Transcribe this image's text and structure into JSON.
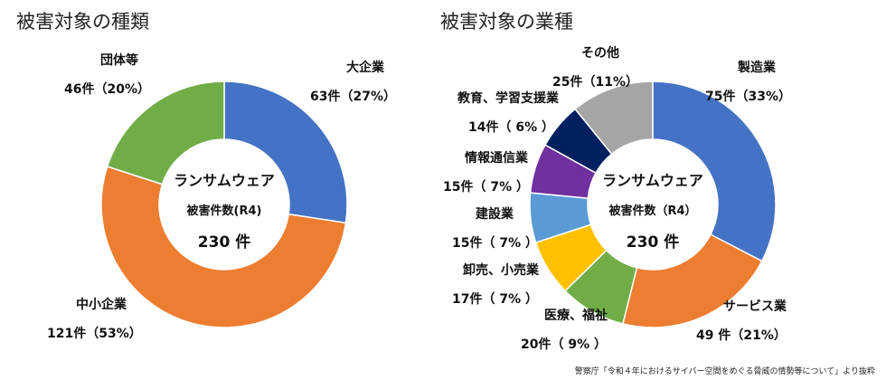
{
  "chart_data": [
    {
      "type": "pie",
      "title": "被害対象の種類",
      "center": {
        "line1": "ランサムウェア",
        "line2": "被害件数(R4)",
        "line3": "230 件"
      },
      "series": [
        {
          "name": "大企業",
          "value": 63,
          "value_label": "63件（27%）",
          "color": "#4472C4"
        },
        {
          "name": "中小企業",
          "value": 121,
          "value_label": "121件（53%）",
          "color": "#ED7D31"
        },
        {
          "name": "団体等",
          "value": 46,
          "value_label": "46件（20%）",
          "color": "#70AD47"
        }
      ]
    },
    {
      "type": "pie",
      "title": "被害対象の業種",
      "center": {
        "line1": "ランサムウェア",
        "line2": "被害件数（R4）",
        "line3": "230 件"
      },
      "series": [
        {
          "name": "製造業",
          "value": 75,
          "value_label": "75件（33%）",
          "color": "#4472C4"
        },
        {
          "name": "サービス業",
          "value": 49,
          "value_label": "49 件（21%）",
          "color": "#ED7D31"
        },
        {
          "name": "医療、福祉",
          "value": 20,
          "value_label": "20件（ 9% ）",
          "color": "#70AD47"
        },
        {
          "name": "卸売、小売業",
          "value": 17,
          "value_label": "17件（ 7% ）",
          "color": "#FFC000"
        },
        {
          "name": "建設業",
          "value": 15,
          "value_label": "15件（ 7% ）",
          "color": "#5B9BD5"
        },
        {
          "name": "情報通信業",
          "value": 15,
          "value_label": "15件（ 7% ）",
          "color": "#7030A0"
        },
        {
          "name": "教育、学習支援業",
          "value": 14,
          "value_label": "14件（ 6% ）",
          "color": "#002060"
        },
        {
          "name": "その他",
          "value": 25,
          "value_label": "25件（11%）",
          "color": "#A5A5A5"
        }
      ]
    }
  ],
  "source_note": "警察庁「令和４年におけるサイバー空間をめぐる脅威の情勢等について」より抜粋"
}
